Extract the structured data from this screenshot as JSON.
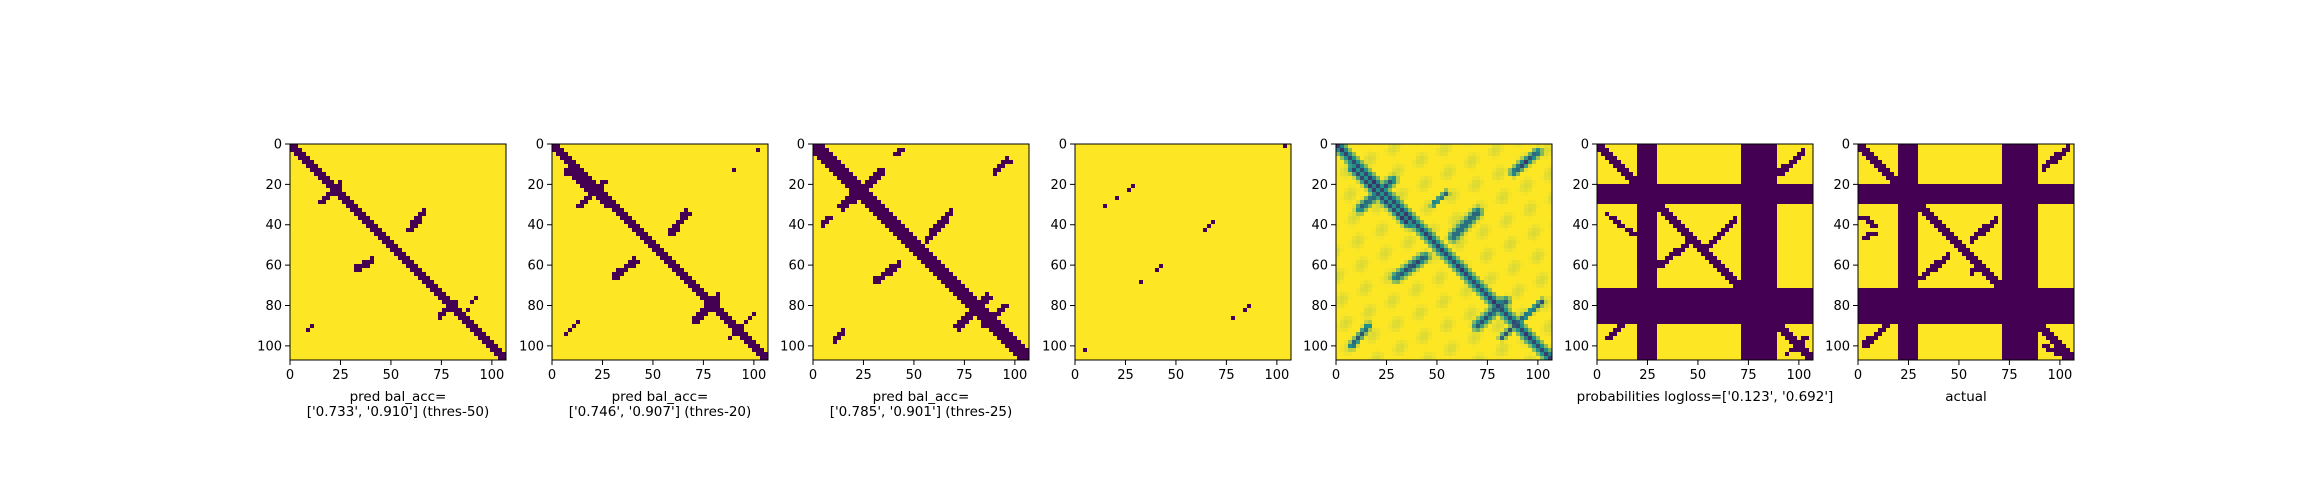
{
  "chart_data": [
    {
      "type": "heatmap",
      "title": "",
      "xlabel_lines": [
        "pred bal_acc=",
        "['0.733', '0.910'] (thres-50)"
      ],
      "ylabel": "",
      "matrix_size": 107,
      "xlim": [
        0,
        107
      ],
      "ylim": [
        107,
        0
      ],
      "x_ticks": [
        "0",
        "25",
        "50",
        "75",
        "100"
      ],
      "y_ticks": [
        "0",
        "20",
        "40",
        "60",
        "80",
        "100"
      ],
      "colormap": {
        "low": "#440154",
        "mid": "#21918c",
        "high": "#fde725"
      },
      "pattern": "binary",
      "diag_width": 2.3,
      "features": [
        {
          "kind": "seg",
          "from": [
            15,
            29
          ],
          "to": [
            25,
            19
          ],
          "width": 1.2
        },
        {
          "kind": "seg",
          "from": [
            33,
            62
          ],
          "to": [
            41,
            58
          ],
          "width": 1.6
        },
        {
          "kind": "seg",
          "from": [
            59,
            43
          ],
          "to": [
            66,
            34
          ],
          "width": 1.6
        },
        {
          "kind": "seg",
          "from": [
            74,
            86
          ],
          "to": [
            81,
            78
          ],
          "width": 1.6
        },
        {
          "kind": "seg",
          "from": [
            84,
            87
          ],
          "to": [
            93,
            75
          ],
          "width": 0.6
        },
        {
          "kind": "seg",
          "from": [
            9,
            93
          ],
          "to": [
            12,
            89
          ],
          "width": 0.8
        }
      ]
    },
    {
      "type": "heatmap",
      "title": "",
      "xlabel_lines": [
        "pred bal_acc=",
        "['0.746', '0.907'] (thres-20)"
      ],
      "ylabel": "",
      "matrix_size": 107,
      "xlim": [
        0,
        107
      ],
      "ylim": [
        107,
        0
      ],
      "x_ticks": [
        "0",
        "25",
        "50",
        "75",
        "100"
      ],
      "y_ticks": [
        "0",
        "20",
        "40",
        "60",
        "80",
        "100"
      ],
      "colormap": {
        "low": "#440154",
        "mid": "#21918c",
        "high": "#fde725"
      },
      "pattern": "binary",
      "diag_width": 2.8,
      "features": [
        {
          "kind": "seg",
          "from": [
            8,
            14
          ],
          "to": [
            28,
            30
          ],
          "width": 1.6
        },
        {
          "kind": "seg",
          "from": [
            14,
            31
          ],
          "to": [
            26,
            19
          ],
          "width": 1.3
        },
        {
          "kind": "seg",
          "from": [
            31,
            66
          ],
          "to": [
            41,
            58
          ],
          "width": 1.8
        },
        {
          "kind": "seg",
          "from": [
            59,
            44
          ],
          "to": [
            67,
            34
          ],
          "width": 1.8
        },
        {
          "kind": "seg",
          "from": [
            71,
            88
          ],
          "to": [
            82,
            76
          ],
          "width": 1.8
        },
        {
          "kind": "seg",
          "from": [
            88,
            96
          ],
          "to": [
            100,
            84
          ],
          "width": 1.0
        },
        {
          "kind": "seg",
          "from": [
            7,
            94
          ],
          "to": [
            13,
            88
          ],
          "width": 1.0
        },
        {
          "kind": "seg",
          "from": [
            89,
            14
          ],
          "to": [
            91,
            12
          ],
          "width": 0.8
        },
        {
          "kind": "seg",
          "from": [
            100,
            4
          ],
          "to": [
            102,
            3
          ],
          "width": 0.8
        }
      ]
    },
    {
      "type": "heatmap",
      "title": "",
      "xlabel_lines": [
        "pred bal_acc=",
        "['0.785', '0.901'] (thres-25)"
      ],
      "ylabel": "",
      "matrix_size": 107,
      "xlim": [
        0,
        107
      ],
      "ylim": [
        107,
        0
      ],
      "x_ticks": [
        "0",
        "25",
        "50",
        "75",
        "100"
      ],
      "y_ticks": [
        "0",
        "20",
        "40",
        "60",
        "80",
        "100"
      ],
      "colormap": {
        "low": "#440154",
        "mid": "#21918c",
        "high": "#fde725"
      },
      "pattern": "binary",
      "diag_width": 3.4,
      "features": [
        {
          "kind": "seg",
          "from": [
            15,
            31
          ],
          "to": [
            34,
            14
          ],
          "width": 2.2
        },
        {
          "kind": "seg",
          "from": [
            5,
            40
          ],
          "to": [
            8,
            36
          ],
          "width": 1.2
        },
        {
          "kind": "seg",
          "from": [
            31,
            68
          ],
          "to": [
            42,
            60
          ],
          "width": 1.8
        },
        {
          "kind": "seg",
          "from": [
            57,
            47
          ],
          "to": [
            68,
            34
          ],
          "width": 1.8
        },
        {
          "kind": "seg",
          "from": [
            90,
            14
          ],
          "to": [
            97,
            8
          ],
          "width": 1.5
        },
        {
          "kind": "seg",
          "from": [
            72,
            90
          ],
          "to": [
            86,
            76
          ],
          "width": 2.2
        },
        {
          "kind": "seg",
          "from": [
            10,
            99
          ],
          "to": [
            15,
            92
          ],
          "width": 1.3
        },
        {
          "kind": "seg",
          "from": [
            40,
            6
          ],
          "to": [
            44,
            3
          ],
          "width": 1.0
        },
        {
          "kind": "seg",
          "from": [
            84,
            90
          ],
          "to": [
            96,
            80
          ],
          "width": 1.2
        }
      ]
    },
    {
      "type": "heatmap",
      "title": "",
      "xlabel_lines": [],
      "ylabel": "",
      "matrix_size": 107,
      "xlim": [
        0,
        107
      ],
      "ylim": [
        107,
        0
      ],
      "x_ticks": [
        "0",
        "25",
        "50",
        "75",
        "100"
      ],
      "y_ticks": [
        "0",
        "20",
        "40",
        "60",
        "80",
        "100"
      ],
      "colormap": {
        "low": "#440154",
        "mid": "#21918c",
        "high": "#fde725"
      },
      "pattern": "sparse",
      "diag_width": 0,
      "features": [
        {
          "kind": "seg",
          "from": [
            15,
            31
          ],
          "to": [
            33,
            18
          ],
          "width": 0.35
        },
        {
          "kind": "seg",
          "from": [
            32,
            69
          ],
          "to": [
            47,
            57
          ],
          "width": 0.35
        },
        {
          "kind": "seg",
          "from": [
            59,
            47
          ],
          "to": [
            74,
            34
          ],
          "width": 0.35
        },
        {
          "kind": "seg",
          "from": [
            73,
            90
          ],
          "to": [
            87,
            80
          ],
          "width": 0.35
        },
        {
          "kind": "seg",
          "from": [
            0,
            106
          ],
          "to": [
            6,
            101
          ],
          "width": 0.35
        },
        {
          "kind": "seg",
          "from": [
            90,
            14
          ],
          "to": [
            93,
            11
          ],
          "width": 0.35
        },
        {
          "kind": "seg",
          "from": [
            101,
            3
          ],
          "to": [
            106,
            0
          ],
          "width": 0.35
        }
      ]
    },
    {
      "type": "heatmap",
      "title": "",
      "xlabel_lines": [],
      "ylabel": "",
      "matrix_size": 107,
      "xlim": [
        0,
        107
      ],
      "ylim": [
        107,
        0
      ],
      "x_ticks": [
        "0",
        "25",
        "50",
        "75",
        "100"
      ],
      "y_ticks": [
        "0",
        "20",
        "40",
        "60",
        "80",
        "100"
      ],
      "colormap": {
        "low": "#440154",
        "mid": "#21918c",
        "high": "#fde725"
      },
      "pattern": "continuous",
      "diag_width": 2.6,
      "features": [
        {
          "kind": "seg",
          "from": [
            8,
            12
          ],
          "to": [
            36,
            40
          ],
          "width": 2.0
        },
        {
          "kind": "seg",
          "from": [
            12,
            32
          ],
          "to": [
            28,
            18
          ],
          "width": 2.2
        },
        {
          "kind": "seg",
          "from": [
            30,
            66
          ],
          "to": [
            44,
            56
          ],
          "width": 2.4
        },
        {
          "kind": "seg",
          "from": [
            58,
            46
          ],
          "to": [
            70,
            34
          ],
          "width": 2.4
        },
        {
          "kind": "seg",
          "from": [
            70,
            90
          ],
          "to": [
            84,
            78
          ],
          "width": 2.4
        },
        {
          "kind": "seg",
          "from": [
            88,
            14
          ],
          "to": [
            100,
            4
          ],
          "width": 2.0
        },
        {
          "kind": "seg",
          "from": [
            8,
            100
          ],
          "to": [
            16,
            90
          ],
          "width": 1.6
        },
        {
          "kind": "seg",
          "from": [
            82,
            96
          ],
          "to": [
            102,
            78
          ],
          "width": 1.4
        },
        {
          "kind": "seg",
          "from": [
            48,
            30
          ],
          "to": [
            55,
            24
          ],
          "width": 1.2
        }
      ]
    },
    {
      "type": "heatmap",
      "title": "",
      "xlabel_lines": [
        "probabilities logloss=['0.123', '0.692']"
      ],
      "ylabel": "",
      "matrix_size": 107,
      "xlim": [
        0,
        107
      ],
      "ylim": [
        107,
        0
      ],
      "x_ticks": [
        "0",
        "25",
        "50",
        "75",
        "100"
      ],
      "y_ticks": [
        "0",
        "20",
        "40",
        "60",
        "80",
        "100"
      ],
      "colormap": {
        "low": "#440154",
        "mid": "#21918c",
        "high": "#fde725"
      },
      "pattern": "masked",
      "diag_width": 2.6,
      "masked_bands": [
        [
          20,
          30
        ],
        [
          72,
          90
        ]
      ],
      "features": [
        {
          "kind": "seg",
          "from": [
            5,
            35
          ],
          "to": [
            18,
            45
          ],
          "width": 1.2
        },
        {
          "kind": "seg",
          "from": [
            6,
            96
          ],
          "to": [
            16,
            85
          ],
          "width": 1.6
        },
        {
          "kind": "seg",
          "from": [
            31,
            60
          ],
          "to": [
            44,
            50
          ],
          "width": 1.6
        },
        {
          "kind": "seg",
          "from": [
            56,
            50
          ],
          "to": [
            68,
            38
          ],
          "width": 1.6
        },
        {
          "kind": "seg",
          "from": [
            91,
            14
          ],
          "to": [
            102,
            4
          ],
          "width": 1.6
        },
        {
          "kind": "seg",
          "from": [
            94,
            104
          ],
          "to": [
            104,
            96
          ],
          "width": 1.2
        }
      ]
    },
    {
      "type": "heatmap",
      "title": "",
      "xlabel_lines": [
        "actual"
      ],
      "ylabel": "",
      "matrix_size": 107,
      "xlim": [
        0,
        107
      ],
      "ylim": [
        107,
        0
      ],
      "x_ticks": [
        "0",
        "25",
        "50",
        "75",
        "100"
      ],
      "y_ticks": [
        "0",
        "20",
        "40",
        "60",
        "80",
        "100"
      ],
      "colormap": {
        "low": "#440154",
        "mid": "#21918c",
        "high": "#fde725"
      },
      "pattern": "masked",
      "diag_width": 2.6,
      "masked_bands": [
        [
          20,
          30
        ],
        [
          72,
          90
        ]
      ],
      "features": [
        {
          "kind": "seg",
          "from": [
            2,
            36
          ],
          "to": [
            8,
            40
          ],
          "width": 1.4
        },
        {
          "kind": "seg",
          "from": [
            4,
            99
          ],
          "to": [
            16,
            88
          ],
          "width": 1.6
        },
        {
          "kind": "seg",
          "from": [
            32,
            66
          ],
          "to": [
            45,
            55
          ],
          "width": 1.6
        },
        {
          "kind": "seg",
          "from": [
            56,
            48
          ],
          "to": [
            68,
            38
          ],
          "width": 1.6
        },
        {
          "kind": "seg",
          "from": [
            92,
            12
          ],
          "to": [
            104,
            2
          ],
          "width": 1.6
        },
        {
          "kind": "seg",
          "from": [
            92,
            100
          ],
          "to": [
            104,
            106
          ],
          "width": 1.6
        },
        {
          "kind": "seg",
          "from": [
            4,
            46
          ],
          "to": [
            8,
            44
          ],
          "width": 1.6
        },
        {
          "kind": "seg",
          "from": [
            56,
            64
          ],
          "to": [
            60,
            60
          ],
          "width": 1.4
        }
      ]
    }
  ]
}
